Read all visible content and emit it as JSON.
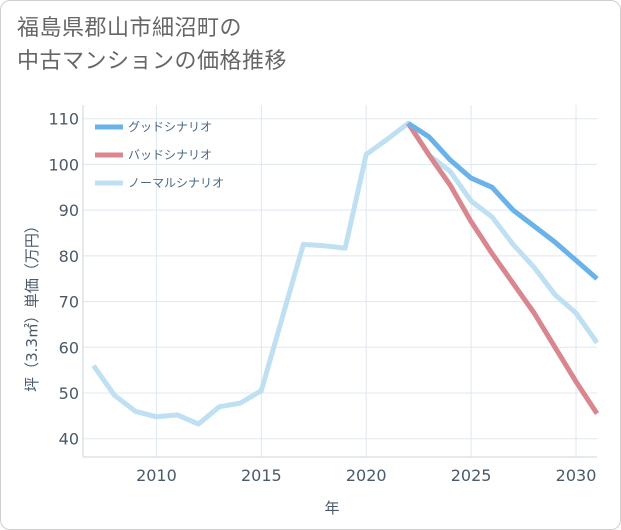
{
  "title_lines": [
    "福島県郡山市細沼町の",
    "中古マンションの価格推移"
  ],
  "chart_data": {
    "type": "line",
    "title": "福島県郡山市細沼町の中古マンションの価格推移",
    "xlabel": "年",
    "ylabel": "坪（3.3㎡）単価（万円）",
    "xlim": [
      2006.5,
      2031
    ],
    "ylim": [
      36,
      113
    ],
    "x_ticks": [
      2010,
      2015,
      2020,
      2025,
      2030
    ],
    "y_ticks": [
      40,
      50,
      60,
      70,
      80,
      90,
      100,
      110
    ],
    "grid": true,
    "legend_position": "top-left",
    "series": [
      {
        "name": "グッドシナリオ",
        "color": "#6ab2ea",
        "x": [
          2022,
          2023,
          2024,
          2025,
          2026,
          2027,
          2028,
          2029,
          2030,
          2031
        ],
        "values": [
          109,
          106,
          101,
          97,
          95,
          90,
          86.5,
          83,
          79,
          75
        ]
      },
      {
        "name": "バッドシナリオ",
        "color": "#d9868e",
        "x": [
          2022,
          2023,
          2024,
          2025,
          2026,
          2027,
          2028,
          2029,
          2030,
          2031
        ],
        "values": [
          109,
          102,
          95.5,
          87.5,
          80.5,
          74,
          67.5,
          60,
          52.5,
          45.5
        ]
      },
      {
        "name": "ノーマルシナリオ",
        "color": "#bfe0f2",
        "x": [
          2007,
          2008,
          2009,
          2010,
          2011,
          2012,
          2013,
          2014,
          2015,
          2016,
          2017,
          2018,
          2019,
          2020,
          2021,
          2022,
          2023,
          2024,
          2025,
          2026,
          2027,
          2028,
          2029,
          2030,
          2031
        ],
        "values": [
          56,
          49.5,
          46,
          44.8,
          45.2,
          43.2,
          47,
          47.8,
          50.5,
          66.5,
          82.5,
          82.2,
          81.7,
          102.2,
          105.5,
          109,
          102,
          98.5,
          92,
          88.5,
          82.5,
          77.5,
          71.5,
          67.5,
          61
        ]
      }
    ]
  }
}
